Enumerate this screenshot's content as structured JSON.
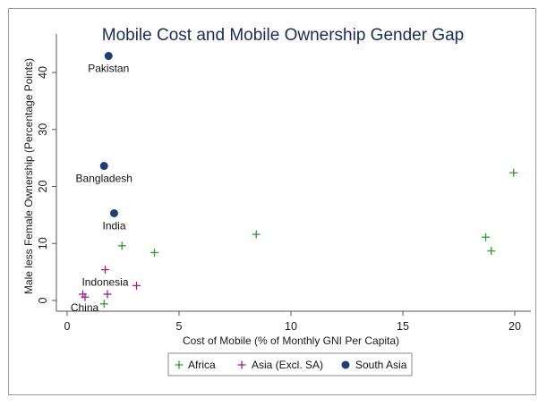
{
  "chart_data": {
    "type": "scatter",
    "title": "Mobile Cost and Mobile Ownership Gender Gap",
    "xlabel": "Cost of Mobile (% of Monthly GNI Per Capita)",
    "ylabel": "Male less Female Ownership (Percentage Points)",
    "xlim": [
      0,
      20
    ],
    "ylim": [
      0,
      43
    ],
    "xticks": [
      0,
      5,
      10,
      15,
      20
    ],
    "yticks": [
      0,
      10,
      20,
      30,
      40
    ],
    "grid": false,
    "legend_position": "bottom",
    "series": [
      {
        "name": "Africa",
        "marker": "plus",
        "color": "#2e9a2e",
        "points": [
          {
            "x": 1.65,
            "y": -0.6
          },
          {
            "x": 2.45,
            "y": 9.6
          },
          {
            "x": 3.9,
            "y": 8.4
          },
          {
            "x": 8.45,
            "y": 11.6
          },
          {
            "x": 18.7,
            "y": 11.1
          },
          {
            "x": 18.95,
            "y": 8.7
          },
          {
            "x": 19.95,
            "y": 22.4
          }
        ]
      },
      {
        "name": "Asia (Excl. SA)",
        "marker": "plus",
        "color": "#9a1f8a",
        "points": [
          {
            "x": 0.7,
            "y": 1.1,
            "label": "China"
          },
          {
            "x": 0.8,
            "y": 0.6
          },
          {
            "x": 1.7,
            "y": 5.4,
            "label": "Indonesia"
          },
          {
            "x": 1.8,
            "y": 1.1
          },
          {
            "x": 3.1,
            "y": 2.6
          }
        ]
      },
      {
        "name": "South Asia",
        "marker": "circle",
        "color": "#1f3f73",
        "points": [
          {
            "x": 1.85,
            "y": 42.9,
            "label": "Pakistan"
          },
          {
            "x": 1.65,
            "y": 23.6,
            "label": "Bangladesh"
          },
          {
            "x": 2.1,
            "y": 15.3,
            "label": "India"
          }
        ]
      }
    ]
  }
}
